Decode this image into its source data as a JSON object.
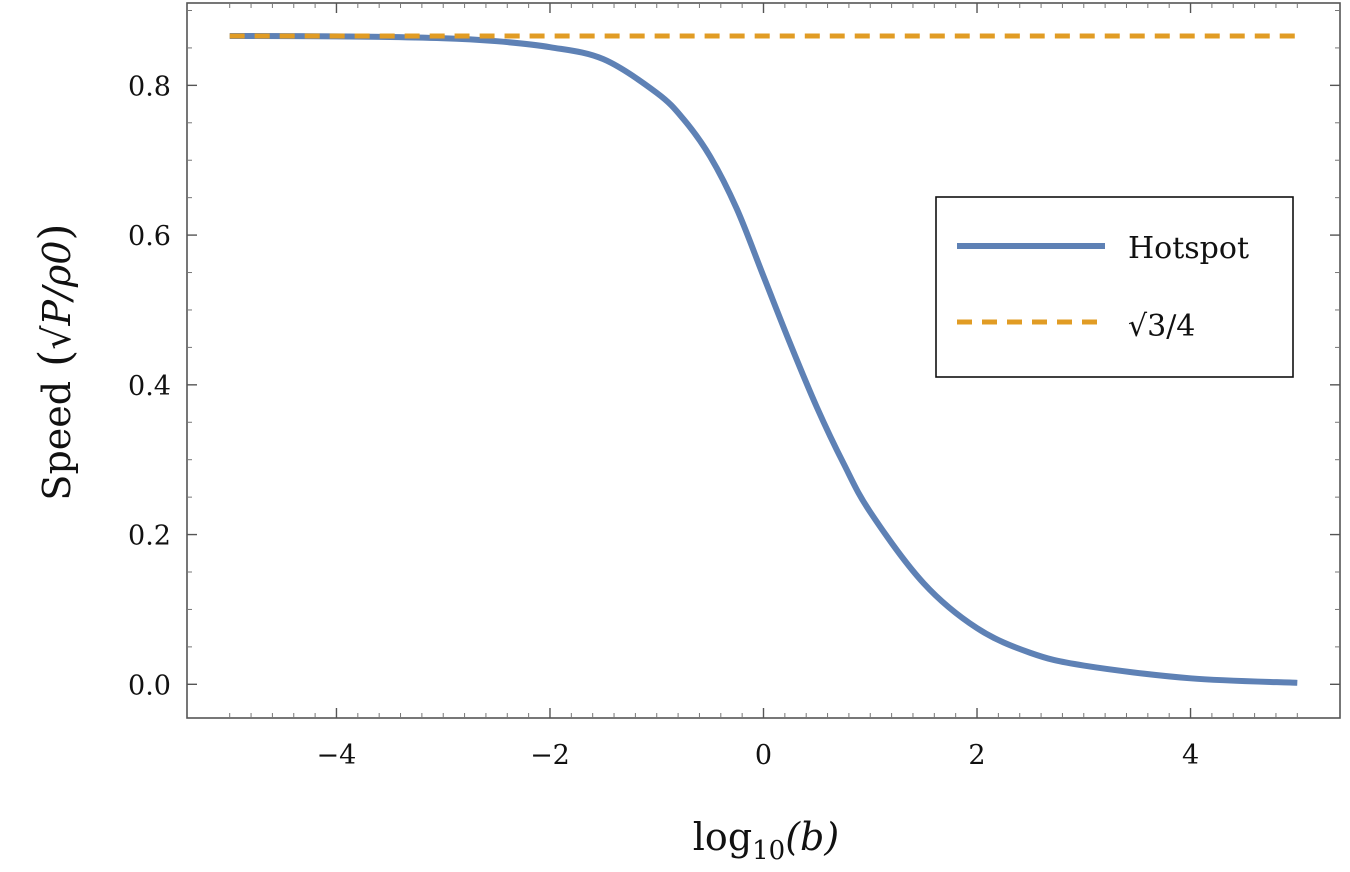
{
  "chart_data": {
    "type": "line",
    "title": "",
    "xlabel": {
      "main": "log",
      "subscript": "10",
      "arg": "(b)"
    },
    "ylabel": {
      "word": "Speed",
      "unit": "√P/ρ0"
    },
    "xlim": [
      -5.4,
      5.4
    ],
    "ylim": [
      -0.045,
      0.91
    ],
    "x_ticks": [
      -4,
      -2,
      0,
      2,
      4
    ],
    "x_tick_labels": [
      "−4",
      "−2",
      "0",
      "2",
      "4"
    ],
    "y_ticks": [
      0.0,
      0.2,
      0.4,
      0.6,
      0.8
    ],
    "y_tick_labels": [
      "0.0",
      "0.2",
      "0.4",
      "0.6",
      "0.8"
    ],
    "grid": false,
    "legend_position": "right",
    "series": [
      {
        "name": "Hotspot",
        "style": "solid",
        "color": "#5e81b5",
        "x": [
          -5,
          -4,
          -3,
          -2.5,
          -2,
          -1.5,
          -1,
          -0.75,
          -0.5,
          -0.25,
          0,
          0.25,
          0.5,
          0.75,
          1,
          1.5,
          2,
          2.5,
          3,
          4,
          5
        ],
        "y": [
          0.866,
          0.8655,
          0.863,
          0.859,
          0.851,
          0.835,
          0.79,
          0.755,
          0.705,
          0.635,
          0.545,
          0.455,
          0.37,
          0.295,
          0.23,
          0.135,
          0.075,
          0.042,
          0.025,
          0.008,
          0.002
        ]
      },
      {
        "name": "√3/4",
        "style": "dashed",
        "color": "#e19c24",
        "x": [
          -5,
          5
        ],
        "y": [
          0.866,
          0.866
        ]
      }
    ]
  }
}
